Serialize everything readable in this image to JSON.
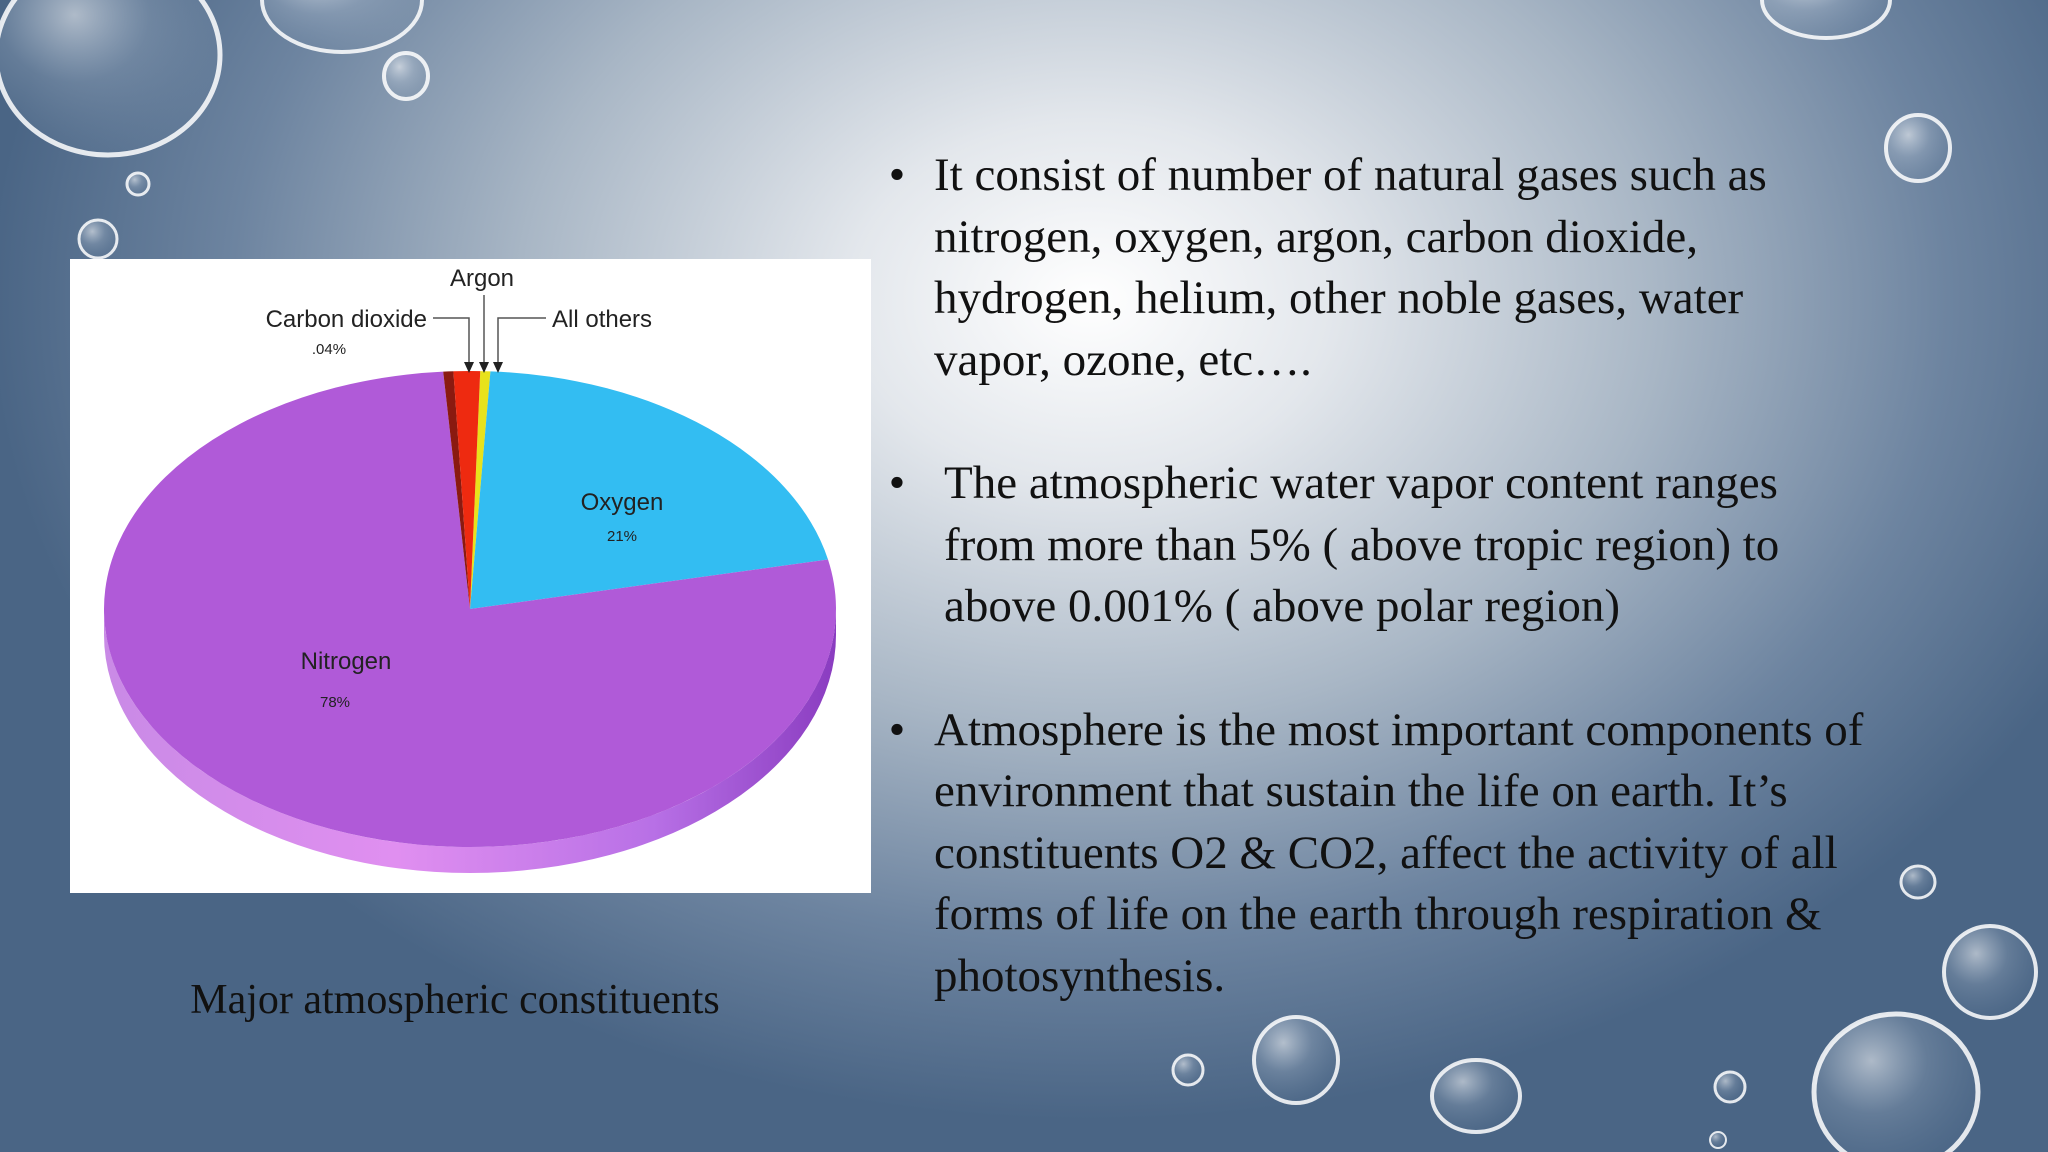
{
  "chart_data": {
    "type": "pie",
    "categories": [
      "Nitrogen",
      "Oxygen",
      "Argon",
      "Carbon dioxide",
      "All others"
    ],
    "values": [
      78,
      21,
      0.93,
      0.04,
      0.03
    ],
    "labels": {
      "nitrogen": {
        "name": "Nitrogen",
        "pct": "78%"
      },
      "oxygen": {
        "name": "Oxygen",
        "pct": "21%"
      },
      "argon": {
        "name": "Argon"
      },
      "co2": {
        "name": "Carbon dioxide",
        "pct": ".04%"
      },
      "others": {
        "name": "All others"
      }
    },
    "colors": {
      "nitrogen": "#b05ad8",
      "oxygen": "#33bdf2",
      "argon": "#ee2a10",
      "co2": "#8a1a10",
      "others": "#e8e21c"
    },
    "legend": "none"
  },
  "caption": "Major atmospheric constituents",
  "bullets": [
    {
      "lines": [
        "It consist of number of natural gases such as",
        "nitrogen, oxygen, argon, carbon dioxide,",
        "hydrogen, helium, other noble gases, water",
        "vapor, ozone, etc…."
      ]
    },
    {
      "lines": [
        "The atmospheric water vapor content ranges",
        "from more than 5% ( above tropic region) to",
        "above 0.001% ( above polar region)"
      ]
    },
    {
      "lines": [
        "Atmosphere is the most important components of",
        "environment that sustain the life on earth. It’s",
        "constituents O2 & CO2, affect the activity of all",
        "forms of life on the earth through respiration &",
        "photosynthesis."
      ]
    }
  ],
  "bullet_symbol": "•"
}
